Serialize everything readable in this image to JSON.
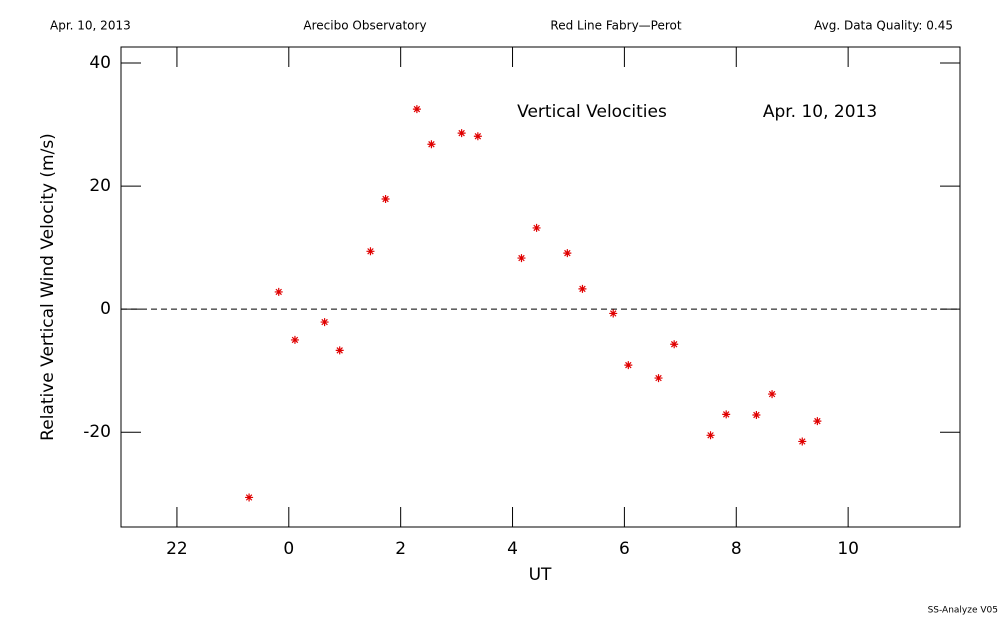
{
  "chart_data": {
    "type": "scatter",
    "header": [
      "Apr. 10, 2013",
      "Arecibo Observatory",
      "Red Line Fabry—Perot",
      "Avg. Data Quality: 0.45"
    ],
    "annotations": [
      "Vertical Velocities",
      "Apr. 10, 2013"
    ],
    "footer": "SS-Analyze V05",
    "x_label": "UT",
    "y_label": "Relative Vertical Wind Velocity (m/s)",
    "color": "#e00000",
    "x": [
      -0.71,
      -0.18,
      0.11,
      0.64,
      0.91,
      1.46,
      1.73,
      2.29,
      2.55,
      3.09,
      3.38,
      4.16,
      4.43,
      4.98,
      5.25,
      5.8,
      6.07,
      6.61,
      6.89,
      7.54,
      7.82,
      8.36,
      8.64,
      9.18,
      9.45
    ],
    "values": [
      -30.6,
      2.8,
      -5.0,
      -2.1,
      -6.7,
      9.4,
      17.9,
      32.5,
      26.8,
      28.6,
      28.1,
      8.3,
      13.2,
      9.1,
      3.3,
      -0.7,
      -9.1,
      -11.2,
      -5.7,
      -20.5,
      -17.1,
      -17.2,
      -13.8,
      -21.5,
      -18.2
    ],
    "xlim": [
      -3,
      12
    ],
    "xticks": [
      {
        "value": -2,
        "label": "22"
      },
      0,
      2,
      4,
      6,
      8,
      10
    ],
    "ylim": [
      -35.4,
      42.6
    ],
    "yticks": [
      -20,
      0,
      20,
      40
    ],
    "hline": 0
  }
}
